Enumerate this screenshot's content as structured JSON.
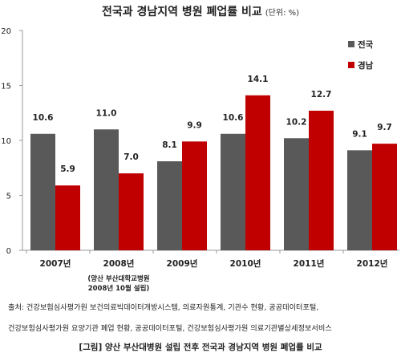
{
  "chart_data": {
    "type": "bar",
    "title": "전국과 경남지역 병원 폐업률 비교",
    "unit_label": "(단위: %)",
    "categories": [
      "2007년",
      "2008년",
      "2009년",
      "2010년",
      "2011년",
      "2012년"
    ],
    "category_note": "(양산 부산대학교병원 2008년 10월 설립)",
    "category_note_lines": [
      "(양산 부산대학교병원",
      "2008년 10월 설립)"
    ],
    "series": [
      {
        "name": "전국",
        "values": [
          10.6,
          11.0,
          8.1,
          10.6,
          10.2,
          9.1
        ],
        "color": "#595959"
      },
      {
        "name": "경남",
        "values": [
          5.9,
          7.0,
          9.9,
          14.1,
          12.7,
          9.7
        ],
        "color": "#c00000"
      }
    ],
    "ylim": [
      0,
      20
    ],
    "yticks": [
      0,
      5,
      10,
      15,
      20
    ],
    "grid": false,
    "legend": "right"
  },
  "source_lines": [
    "출처: 건강보험심사평가원 보건의료빅데이터개방시스템, 의료자원통계, 기관수 현황, 공공데이터포털,",
    "건강보험심사평가원 요양기관 폐업 현황, 공공데이터포털, 건강보험심사평가원 의료기관별상세정보서비스"
  ],
  "caption": "[그림] 양산 부산대병원 설립 전후 전국과 경남지역 병원 폐업률 비교"
}
